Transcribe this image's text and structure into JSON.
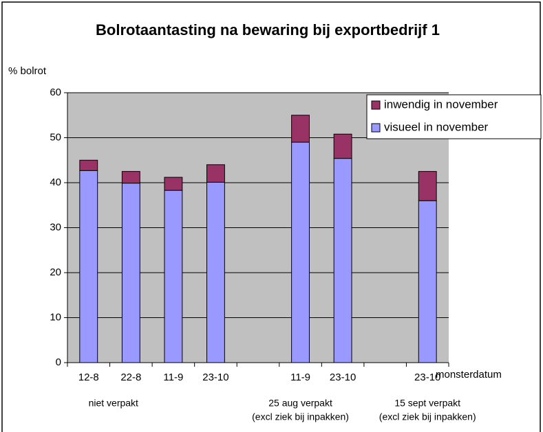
{
  "chart_data": {
    "type": "stacked_bar",
    "title": "Bolrotaantasting na bewaring bij exportbedrijf 1",
    "y_label": "% bolrot",
    "x_label": "monsterdatum",
    "categories": [
      "12-8",
      "22-8",
      "11-9",
      "23-10",
      null,
      "11-9",
      "23-10",
      null,
      "23-10"
    ],
    "group_labels": [
      {
        "category": 0,
        "lines": [
          "niet verpakt"
        ]
      },
      {
        "category": 5,
        "lines": [
          "25 aug verpakt",
          "(excl ziek bij inpakken)"
        ]
      },
      {
        "category": 8,
        "lines": [
          "15 sept verpakt",
          "(excl ziek bij inpakken)"
        ]
      }
    ],
    "series": [
      {
        "name": "visueel in november",
        "color": "#9999ff",
        "values": [
          42.7,
          39.9,
          38.3,
          40.1,
          null,
          49,
          45.4,
          null,
          36
        ]
      },
      {
        "name": "inwendig in november",
        "color": "#993366",
        "values": [
          2.3,
          2.6,
          2.9,
          3.9,
          null,
          6,
          5.4,
          null,
          6.5
        ]
      }
    ],
    "ylim": [
      0,
      60
    ],
    "yticks": [
      0,
      10,
      20,
      30,
      40,
      50,
      60
    ],
    "grid": true,
    "legend": "upper right"
  }
}
